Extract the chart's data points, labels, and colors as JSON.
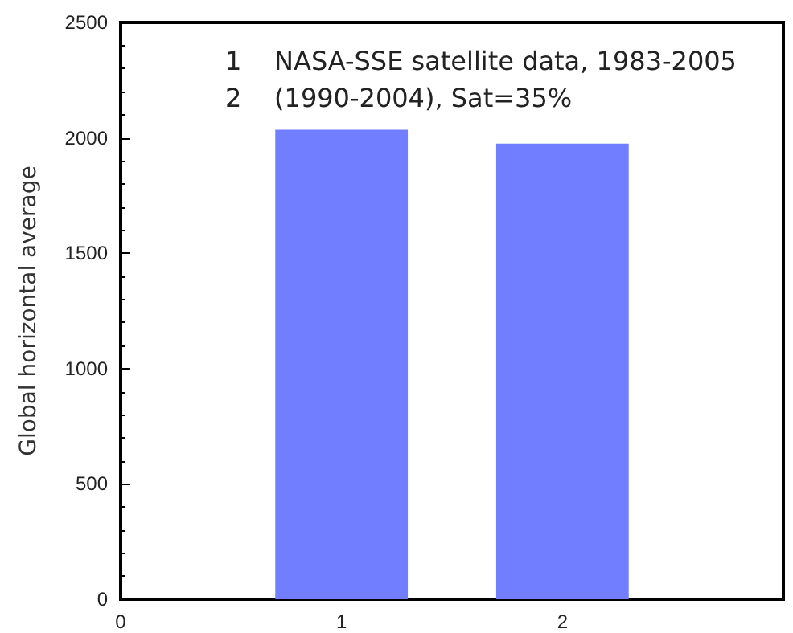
{
  "chart_data": {
    "type": "bar",
    "ylabel": "Global horizontal average",
    "x": [
      1,
      2
    ],
    "values": [
      2035,
      1975
    ],
    "color": "#717eff",
    "xlim": [
      0,
      3
    ],
    "xticks": [
      0,
      1,
      2
    ],
    "ylim": [
      0,
      2500
    ],
    "yticks": [
      0,
      500,
      1000,
      1500,
      2000,
      2500
    ],
    "annotations": [
      "1    NASA-SSE satellite data, 1983-2005",
      "2    (1990-2004), Sat=35%"
    ],
    "grid": false
  }
}
